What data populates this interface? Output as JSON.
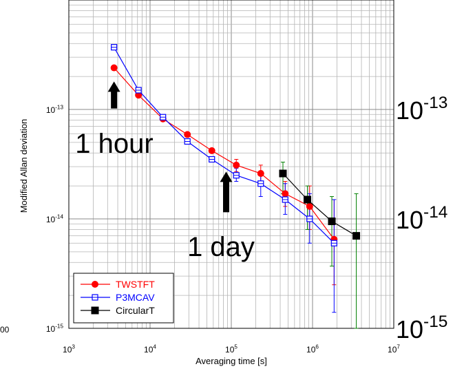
{
  "chart_data": {
    "type": "scatter",
    "xlabel": "Averaging time [s]",
    "ylabel": "Modified Allan deviation",
    "x_scale": "log",
    "y_scale": "log",
    "xlim": [
      1000,
      10000000
    ],
    "ylim": [
      1e-15,
      1e-12
    ],
    "grid": true,
    "legend_position": "bottom-left",
    "x_tick_labels": [
      {
        "value": 1000,
        "base": "10",
        "exp": "3"
      },
      {
        "value": 10000,
        "base": "10",
        "exp": "4"
      },
      {
        "value": 100000,
        "base": "10",
        "exp": "5"
      },
      {
        "value": 1000000,
        "base": "10",
        "exp": "6"
      },
      {
        "value": 10000000,
        "base": "10",
        "exp": "7"
      }
    ],
    "y_tick_labels": [
      {
        "value": 1e-15,
        "base": "10",
        "exp": "-15"
      },
      {
        "value": 1e-14,
        "base": "10",
        "exp": "-14"
      },
      {
        "value": 1e-13,
        "base": "10",
        "exp": "-13"
      }
    ],
    "right_axis_labels": [
      {
        "value": 1e-13,
        "base": "10",
        "exp": "-13"
      },
      {
        "value": 1e-14,
        "base": "10",
        "exp": "-14"
      },
      {
        "value": 1e-15,
        "base": "10",
        "exp": "-15"
      }
    ],
    "cut_off_label": "00",
    "series": [
      {
        "name": "TWSTFT",
        "color": "#ff0000",
        "marker": "filled-circle",
        "points": [
          {
            "x": 3600,
            "y": 2.4e-13
          },
          {
            "x": 7200,
            "y": 1.35e-13
          },
          {
            "x": 14400,
            "y": 8.2e-14
          },
          {
            "x": 28800,
            "y": 5.9e-14
          },
          {
            "x": 57600,
            "y": 4.2e-14
          },
          {
            "x": 115200,
            "y": 3.1e-14,
            "err_low": 2.7e-14,
            "err_high": 3.5e-14
          },
          {
            "x": 230400,
            "y": 2.6e-14,
            "err_low": 2.1e-14,
            "err_high": 3.1e-14
          },
          {
            "x": 460800,
            "y": 1.7e-14,
            "err_low": 1.3e-14,
            "err_high": 2.2e-14
          },
          {
            "x": 921600,
            "y": 1.3e-14,
            "err_low": 8e-15,
            "err_high": 2e-14
          },
          {
            "x": 1843200,
            "y": 6.5e-15,
            "err_low": 2.5e-15,
            "err_high": 1.5e-14
          }
        ]
      },
      {
        "name": "P3MCAV",
        "color": "#0000ff",
        "marker": "open-square",
        "points": [
          {
            "x": 3600,
            "y": 3.7e-13
          },
          {
            "x": 7200,
            "y": 1.5e-13
          },
          {
            "x": 14400,
            "y": 8.5e-14
          },
          {
            "x": 28800,
            "y": 5.1e-14
          },
          {
            "x": 57600,
            "y": 3.5e-14
          },
          {
            "x": 115200,
            "y": 2.5e-14,
            "err_low": 2.2e-14,
            "err_high": 2.9e-14
          },
          {
            "x": 230400,
            "y": 2.1e-14,
            "err_low": 1.6e-14,
            "err_high": 2.6e-14
          },
          {
            "x": 460800,
            "y": 1.5e-14,
            "err_low": 1.1e-14,
            "err_high": 2.1e-14
          },
          {
            "x": 921600,
            "y": 1e-14,
            "err_low": 6e-15,
            "err_high": 1.7e-14
          },
          {
            "x": 1843200,
            "y": 6e-15,
            "err_low": 1.4e-15,
            "err_high": 1.5e-14
          }
        ]
      },
      {
        "name": "CircularT",
        "color": "#000000",
        "error_color": "#008000",
        "marker": "filled-square",
        "points": [
          {
            "x": 432000,
            "y": 2.6e-14,
            "err_low": 1.7e-14,
            "err_high": 3.3e-14
          },
          {
            "x": 864000,
            "y": 1.5e-14,
            "err_low": 8e-15,
            "err_high": 2e-14
          },
          {
            "x": 1728000,
            "y": 9.5e-15,
            "err_low": 3.7e-15,
            "err_high": 1.6e-14
          },
          {
            "x": 3456000,
            "y": 7e-15,
            "err_low": 1e-15,
            "err_high": 1.7e-14
          }
        ]
      }
    ],
    "annotations": [
      {
        "text": "1 hour",
        "arrow_x": 3600,
        "arrow_from_y": 1.02e-13,
        "arrow_to_y": 1.8e-13
      },
      {
        "text": "1 day",
        "arrow_x": 86400,
        "arrow_from_y": 1.15e-14,
        "arrow_to_y": 2.7e-14
      }
    ]
  }
}
